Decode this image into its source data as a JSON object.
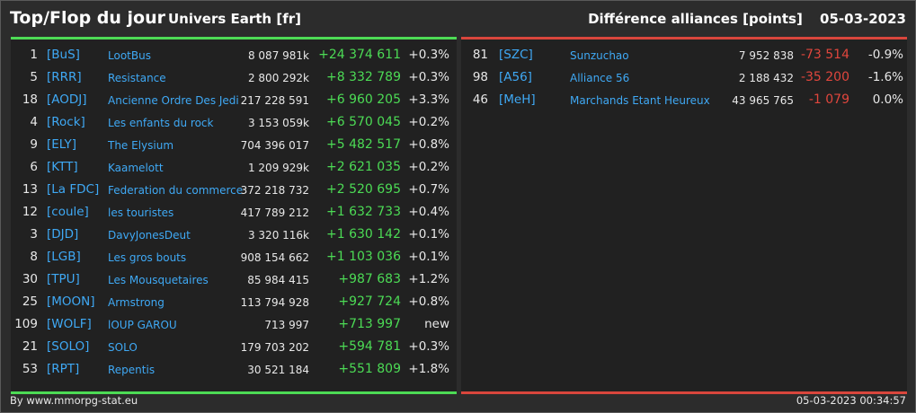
{
  "header": {
    "title": "Top/Flop du jour",
    "universe": "Univers Earth [fr]",
    "section": "Différence alliances [points]",
    "date": "05-03-2023"
  },
  "top": [
    {
      "rank": "1",
      "tag": "[BuS]",
      "name": "LootBus",
      "points": "8 087 981k",
      "diff": "+24 374 611",
      "pct": "+0.3%"
    },
    {
      "rank": "5",
      "tag": "[RRR]",
      "name": "Resistance",
      "points": "2 800 292k",
      "diff": "+8 332 789",
      "pct": "+0.3%"
    },
    {
      "rank": "18",
      "tag": "[AODJ]",
      "name": "Ancienne Ordre Des Jedi",
      "points": "217 228 591",
      "diff": "+6 960 205",
      "pct": "+3.3%"
    },
    {
      "rank": "4",
      "tag": "[Rock]",
      "name": "Les enfants du rock",
      "points": "3 153 059k",
      "diff": "+6 570 045",
      "pct": "+0.2%"
    },
    {
      "rank": "9",
      "tag": "[ELY]",
      "name": "The Elysium",
      "points": "704 396 017",
      "diff": "+5 482 517",
      "pct": "+0.8%"
    },
    {
      "rank": "6",
      "tag": "[KTT]",
      "name": "Kaamelott",
      "points": "1 209 929k",
      "diff": "+2 621 035",
      "pct": "+0.2%"
    },
    {
      "rank": "13",
      "tag": "[La FDC]",
      "name": "Federation du commerce",
      "points": "372 218 732",
      "diff": "+2 520 695",
      "pct": "+0.7%"
    },
    {
      "rank": "12",
      "tag": "[coule]",
      "name": "les touristes",
      "points": "417 789 212",
      "diff": "+1 632 733",
      "pct": "+0.4%"
    },
    {
      "rank": "3",
      "tag": "[DJD]",
      "name": "DavyJonesDeut",
      "points": "3 320 116k",
      "diff": "+1 630 142",
      "pct": "+0.1%"
    },
    {
      "rank": "8",
      "tag": "[LGB]",
      "name": "Les gros bouts",
      "points": "908 154 662",
      "diff": "+1 103 036",
      "pct": "+0.1%"
    },
    {
      "rank": "30",
      "tag": "[TPU]",
      "name": "Les Mousquetaires",
      "points": "85 984 415",
      "diff": "+987 683",
      "pct": "+1.2%"
    },
    {
      "rank": "25",
      "tag": "[MOON]",
      "name": "Armstrong",
      "points": "113 794 928",
      "diff": "+927 724",
      "pct": "+0.8%"
    },
    {
      "rank": "109",
      "tag": "[WOLF]",
      "name": "lOUP GAROU",
      "points": "713 997",
      "diff": "+713 997",
      "pct": "new"
    },
    {
      "rank": "21",
      "tag": "[SOLO]",
      "name": "SOLO",
      "points": "179 703 202",
      "diff": "+594 781",
      "pct": "+0.3%"
    },
    {
      "rank": "53",
      "tag": "[RPT]",
      "name": "Repentis",
      "points": "30 521 184",
      "diff": "+551 809",
      "pct": "+1.8%"
    }
  ],
  "flop": [
    {
      "rank": "81",
      "tag": "[SZC]",
      "name": "Sunzuchao",
      "points": "7 952 838",
      "diff": "-73 514",
      "pct": "-0.9%"
    },
    {
      "rank": "98",
      "tag": "[A56]",
      "name": "Alliance 56",
      "points": "2 188 432",
      "diff": "-35 200",
      "pct": "-1.6%"
    },
    {
      "rank": "46",
      "tag": "[MeH]",
      "name": "Marchands Etant Heureux",
      "points": "43 965 765",
      "diff": "-1 079",
      "pct": "0.0%"
    }
  ],
  "footer": {
    "credit": "By www.mmorpg-stat.eu",
    "timestamp": "05-03-2023 00:34:57"
  },
  "colors": {
    "positive": "#4cdb55",
    "negative": "#e0463d",
    "link": "#3fa9f5"
  }
}
